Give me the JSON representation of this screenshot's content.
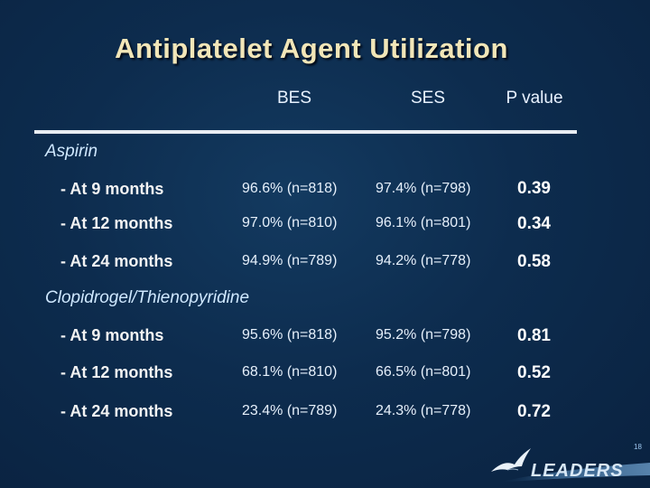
{
  "title": "Antiplatelet Agent Utilization",
  "columns": {
    "bes": "BES",
    "ses": "SES",
    "p": "P value"
  },
  "sections": [
    {
      "name": "Aspirin",
      "rows": [
        {
          "label": "- At 9 months",
          "bes": "96.6% (n=818)",
          "ses": "97.4% (n=798)",
          "p": "0.39"
        },
        {
          "label": "- At 12 months",
          "bes": "97.0% (n=810)",
          "ses": "96.1% (n=801)",
          "p": "0.34"
        },
        {
          "label": "- At 24 months",
          "bes": "94.9% (n=789)",
          "ses": "94.2% (n=778)",
          "p": "0.58"
        }
      ]
    },
    {
      "name": "Clopidrogel/Thienopyridine",
      "rows": [
        {
          "label": "- At 9 months",
          "bes": "95.6% (n=818)",
          "ses": "95.2% (n=798)",
          "p": "0.81"
        },
        {
          "label": "- At 12 months",
          "bes": "68.1% (n=810)",
          "ses": "66.5% (n=801)",
          "p": "0.52"
        },
        {
          "label": "- At 24 months",
          "bes": "23.4% (n=789)",
          "ses": "24.3% (n=778)",
          "p": "0.72"
        }
      ]
    }
  ],
  "page_number": "18",
  "logo_text": "LEADERS",
  "colors": {
    "title": "#f2e6b8",
    "background": "#0d2c4e",
    "section": "#cfe8ff"
  }
}
